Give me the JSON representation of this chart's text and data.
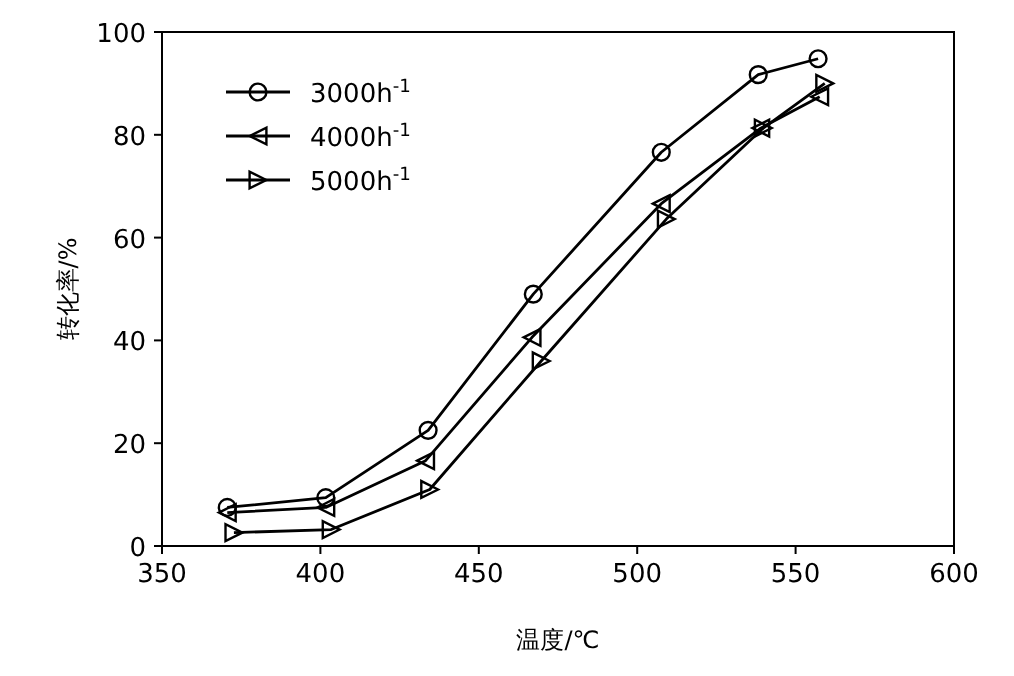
{
  "chart_data": {
    "type": "line",
    "xlabel": "温度/℃",
    "ylabel": "转化率/%",
    "xlim": [
      350,
      600
    ],
    "xticks": [
      350,
      400,
      450,
      500,
      550,
      600
    ],
    "ylim": [
      0,
      100
    ],
    "yticks": [
      0,
      20,
      40,
      60,
      80,
      100
    ],
    "grid": false,
    "legend": "top left",
    "series": [
      {
        "name": "3000h$^{-1}$",
        "color": "#000000",
        "marker": "circle",
        "x": [
          370.6,
          401.7,
          434,
          467.2,
          507.6,
          538.2,
          557.1
        ],
        "values": [
          7.5,
          9.4,
          22.5,
          49,
          76.6,
          91.7,
          94.8
        ]
      },
      {
        "name": "4000h$^{-1}$",
        "color": "#000000",
        "marker": "triangle-left",
        "x": [
          370.6,
          401.7,
          433.2,
          466.8,
          507.6,
          539,
          557.6
        ],
        "values": [
          6.5,
          7.5,
          16.6,
          40.6,
          66.6,
          81.3,
          87.4
        ]
      },
      {
        "name": "5000h$^{-1}$",
        "color": "#000000",
        "marker": "triangle-right",
        "x": [
          372.7,
          403.4,
          434.5,
          469.7,
          509.2,
          539.8,
          559.2
        ],
        "values": [
          2.6,
          3.2,
          11,
          36,
          63.6,
          81.3,
          90
        ]
      }
    ]
  }
}
